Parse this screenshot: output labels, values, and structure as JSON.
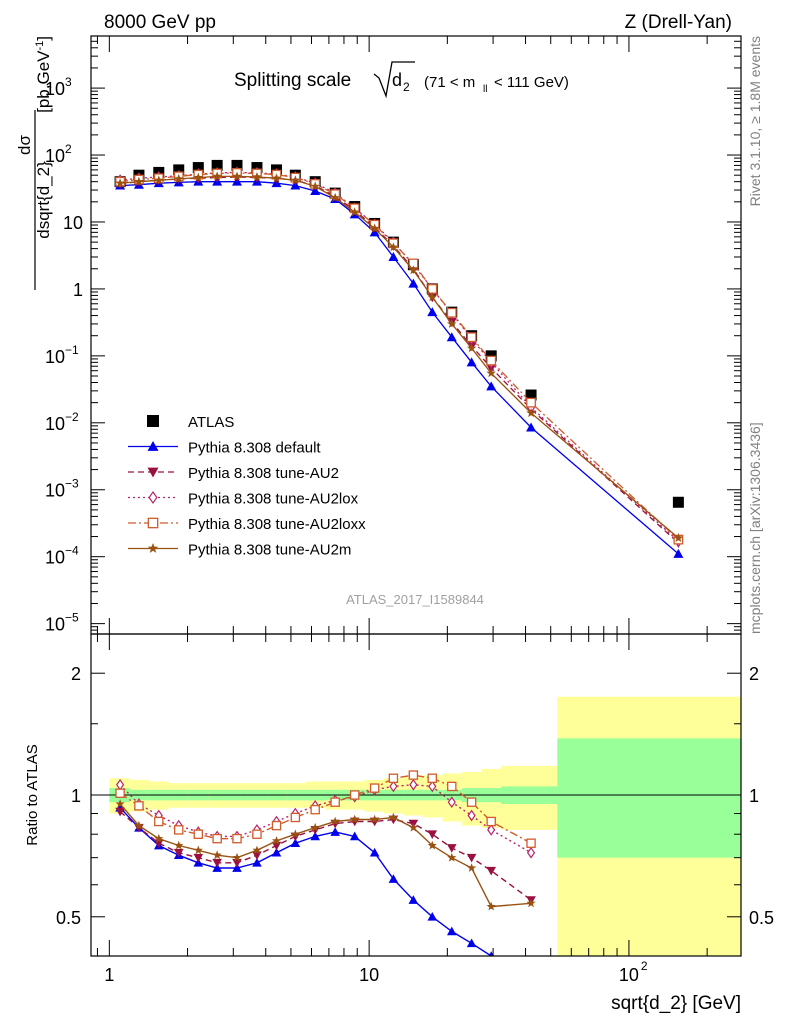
{
  "header": {
    "left": "8000 GeV pp",
    "right": "Z (Drell-Yan)"
  },
  "side_labels": {
    "rivet": "Rivet 3.1.10, ≥ 1.8M events",
    "mcplots": "mcplots.cern.ch [arXiv:1306.3436]"
  },
  "chart_data": [
    {
      "type": "scatter",
      "title": "Splitting scale",
      "title_math": "√d₂",
      "title_range": "(71 < m_ll < 111 GeV)",
      "watermark": "ATLAS_2017_I1589844",
      "xlabel": "",
      "ylabel": "dσ/dsqrt{d_2} [pb,GeV⁻¹]",
      "xscale": "log",
      "yscale": "log",
      "xlim": [
        0.85,
        270
      ],
      "ylim": [
        7e-06,
        6000
      ],
      "y_ticks": [
        {
          "value": 1e-05,
          "mant": "10",
          "exp": "−5"
        },
        {
          "value": 0.0001,
          "mant": "10",
          "exp": "−4"
        },
        {
          "value": 0.001,
          "mant": "10",
          "exp": "−3"
        },
        {
          "value": 0.01,
          "mant": "10",
          "exp": "−2"
        },
        {
          "value": 0.1,
          "mant": "10",
          "exp": "−1"
        },
        {
          "value": 1,
          "mant": "1",
          "exp": ""
        },
        {
          "value": 10,
          "mant": "10",
          "exp": ""
        },
        {
          "value": 100,
          "mant": "10",
          "exp": "2"
        },
        {
          "value": 1000,
          "mant": "10",
          "exp": "3"
        }
      ],
      "legend_position": "lower-left",
      "x": [
        1.1,
        1.3,
        1.55,
        1.85,
        2.2,
        2.6,
        3.1,
        3.7,
        4.4,
        5.2,
        6.2,
        7.4,
        8.8,
        10.5,
        12.4,
        14.8,
        17.5,
        20.8,
        24.8,
        29.5,
        42,
        155
      ],
      "series": [
        {
          "name": "ATLAS",
          "color": "#000000",
          "marker": "square",
          "values": [
            40,
            50,
            55,
            60,
            65,
            70,
            70,
            65,
            60,
            50,
            40,
            27,
            17,
            9.5,
            5,
            2.3,
            1,
            0.45,
            0.2,
            0.1,
            0.026,
            0.00065
          ]
        },
        {
          "name": "Pythia 8.308 default",
          "color": "#0000ee",
          "marker": "triangle-up",
          "line": "solid",
          "values": [
            35,
            36,
            38,
            39,
            40,
            40,
            40,
            40,
            38,
            35,
            29,
            22,
            13,
            7,
            3,
            1.2,
            0.45,
            0.19,
            0.08,
            0.035,
            0.0085,
            0.00011
          ]
        },
        {
          "name": "Pythia 8.308 tune-AU2",
          "color": "#9a1040",
          "marker": "triangle-down",
          "line": "dashed",
          "values": [
            37,
            40,
            42,
            44,
            45,
            46,
            47,
            46,
            45,
            42,
            35,
            24,
            15,
            8.3,
            4.4,
            2,
            0.75,
            0.32,
            0.14,
            0.066,
            0.016,
            0.00016
          ]
        },
        {
          "name": "Pythia 8.308 tune-AU2lox",
          "color": "#b8236a",
          "marker": "diamond-open",
          "line": "dotted",
          "values": [
            42,
            45,
            47,
            49,
            52,
            54,
            55,
            54,
            52,
            47,
            38,
            27,
            16,
            9.2,
            5,
            2.3,
            1,
            0.43,
            0.18,
            0.08,
            0.017,
            0.00017
          ]
        },
        {
          "name": "Pythia 8.308 tune-AU2loxx",
          "color": "#d15a2a",
          "marker": "square-open",
          "line": "dashdot",
          "values": [
            40,
            43,
            45,
            48,
            51,
            53,
            54,
            53,
            51,
            46,
            37,
            26,
            16,
            9.1,
            4.8,
            2.4,
            1,
            0.44,
            0.19,
            0.085,
            0.02,
            0.00018
          ]
        },
        {
          "name": "Pythia 8.308 tune-AU2m",
          "color": "#995211",
          "marker": "star",
          "line": "solid",
          "values": [
            38,
            40,
            42,
            44,
            46,
            48,
            48,
            47,
            45,
            42,
            34,
            23,
            14,
            8,
            4.2,
            1.9,
            0.75,
            0.3,
            0.13,
            0.055,
            0.014,
            0.00019
          ]
        }
      ]
    },
    {
      "type": "line",
      "xlabel": "sqrt{d_2} [GeV]",
      "ylabel": "Ratio to ATLAS",
      "xscale": "log",
      "yscale": "log",
      "xlim": [
        0.85,
        270
      ],
      "ylim": [
        0.4,
        2.5
      ],
      "y_ticks": [
        {
          "value": 0.5,
          "label": "0.5"
        },
        {
          "value": 1,
          "label": "1"
        },
        {
          "value": 2,
          "label": "2"
        }
      ],
      "x_ticks": [
        {
          "value": 1,
          "mant": "1",
          "exp": ""
        },
        {
          "value": 10,
          "mant": "10",
          "exp": ""
        },
        {
          "value": 100,
          "mant": "10",
          "exp": "2"
        }
      ],
      "bands": [
        {
          "x_lo": 1,
          "x_hi": 53,
          "stat_lo": [
            0.95,
            0.96,
            0.96,
            0.96,
            0.96,
            0.96,
            0.96,
            0.96,
            0.96,
            0.96,
            0.96,
            0.96,
            0.96,
            0.96,
            0.96,
            0.96,
            0.96,
            0.96,
            0.95,
            0.95,
            0.95
          ],
          "stat_hi": [
            1.05,
            1.04,
            1.04,
            1.04,
            1.04,
            1.04,
            1.04,
            1.04,
            1.04,
            1.04,
            1.04,
            1.04,
            1.04,
            1.04,
            1.04,
            1.04,
            1.04,
            1.04,
            1.05,
            1.05,
            1.05
          ]
        },
        {
          "edges": [
            1.0,
            1.2,
            1.42,
            1.69,
            2.02,
            2.4,
            2.85,
            3.4,
            4.05,
            4.8,
            5.7,
            6.8,
            8.1,
            9.6,
            11.4,
            13.6,
            16.2,
            19.2,
            22.8,
            27.1,
            32.2,
            53,
            270
          ],
          "total_lo": [
            0.9,
            0.91,
            0.92,
            0.93,
            0.93,
            0.93,
            0.93,
            0.93,
            0.93,
            0.93,
            0.93,
            0.92,
            0.92,
            0.91,
            0.9,
            0.89,
            0.88,
            0.86,
            0.84,
            0.83,
            0.82,
            0.36
          ],
          "total_hi": [
            1.1,
            1.09,
            1.08,
            1.07,
            1.07,
            1.07,
            1.07,
            1.07,
            1.07,
            1.07,
            1.08,
            1.08,
            1.08,
            1.09,
            1.1,
            1.11,
            1.12,
            1.13,
            1.14,
            1.16,
            1.18,
            1.75
          ],
          "stat_lo": [
            0.96,
            0.97,
            0.97,
            0.97,
            0.97,
            0.97,
            0.97,
            0.97,
            0.97,
            0.97,
            0.97,
            0.97,
            0.97,
            0.97,
            0.97,
            0.97,
            0.97,
            0.97,
            0.96,
            0.96,
            0.95,
            0.7
          ],
          "stat_hi": [
            1.04,
            1.03,
            1.03,
            1.03,
            1.03,
            1.03,
            1.03,
            1.03,
            1.03,
            1.03,
            1.03,
            1.03,
            1.03,
            1.03,
            1.03,
            1.03,
            1.03,
            1.03,
            1.04,
            1.04,
            1.05,
            1.38
          ]
        }
      ],
      "x": [
        1.1,
        1.3,
        1.55,
        1.85,
        2.2,
        2.6,
        3.1,
        3.7,
        4.4,
        5.2,
        6.2,
        7.4,
        8.8,
        10.5,
        12.4,
        14.8,
        17.5,
        20.8,
        24.8,
        29.5,
        42
      ],
      "series": [
        {
          "name": "Pythia 8.308 default",
          "color": "#0000ee",
          "marker": "triangle-up",
          "line": "solid",
          "values": [
            0.93,
            0.83,
            0.75,
            0.71,
            0.68,
            0.66,
            0.66,
            0.68,
            0.72,
            0.76,
            0.79,
            0.81,
            0.79,
            0.72,
            0.62,
            0.55,
            0.5,
            0.46,
            0.43,
            0.4,
            0.38
          ]
        },
        {
          "name": "Pythia 8.308 tune-AU2",
          "color": "#9a1040",
          "marker": "triangle-down",
          "line": "dashed",
          "values": [
            0.91,
            0.83,
            0.76,
            0.72,
            0.7,
            0.68,
            0.68,
            0.71,
            0.75,
            0.79,
            0.82,
            0.85,
            0.86,
            0.86,
            0.87,
            0.85,
            0.8,
            0.74,
            0.7,
            0.65,
            0.55
          ]
        },
        {
          "name": "Pythia 8.308 tune-AU2lox",
          "color": "#b8236a",
          "marker": "diamond-open",
          "line": "dotted",
          "values": [
            1.06,
            0.95,
            0.89,
            0.84,
            0.81,
            0.79,
            0.79,
            0.82,
            0.86,
            0.9,
            0.94,
            0.97,
            0.99,
            1.03,
            1.05,
            1.06,
            1.05,
            0.96,
            0.89,
            0.82,
            0.72
          ]
        },
        {
          "name": "Pythia 8.308 tune-AU2loxx",
          "color": "#d15a2a",
          "marker": "square-open",
          "line": "dashdot",
          "values": [
            1.01,
            0.94,
            0.86,
            0.82,
            0.8,
            0.78,
            0.78,
            0.8,
            0.84,
            0.88,
            0.92,
            0.96,
            1.0,
            1.04,
            1.1,
            1.12,
            1.1,
            1.05,
            0.96,
            0.86,
            0.76
          ]
        },
        {
          "name": "Pythia 8.308 tune-AU2m",
          "color": "#995211",
          "marker": "star",
          "line": "solid",
          "values": [
            0.95,
            0.84,
            0.78,
            0.75,
            0.73,
            0.71,
            0.7,
            0.73,
            0.77,
            0.8,
            0.83,
            0.86,
            0.87,
            0.87,
            0.88,
            0.83,
            0.75,
            0.7,
            0.66,
            0.53,
            0.54
          ]
        }
      ]
    }
  ]
}
